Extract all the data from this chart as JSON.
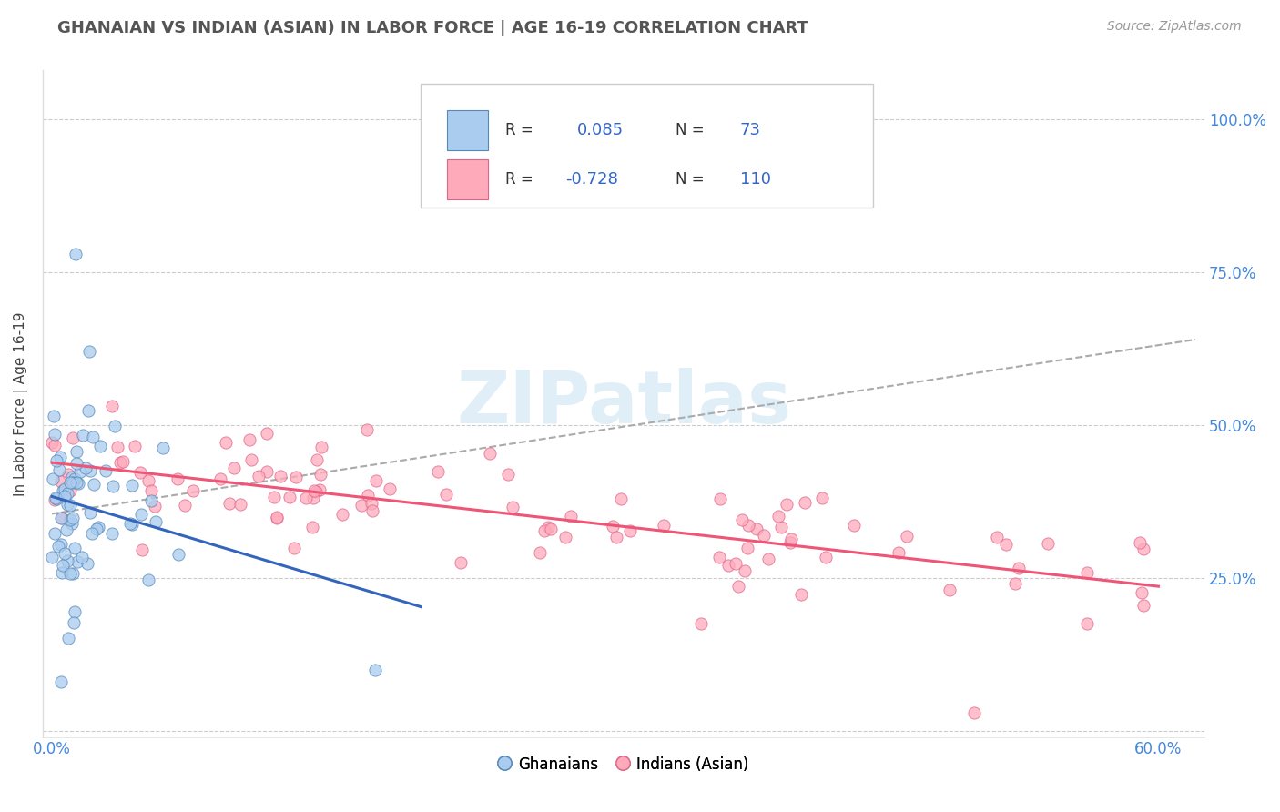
{
  "title": "GHANAIAN VS INDIAN (ASIAN) IN LABOR FORCE | AGE 16-19 CORRELATION CHART",
  "source": "Source: ZipAtlas.com",
  "ylabel": "In Labor Force | Age 16-19",
  "watermark": "ZIPatlas",
  "background_color": "#ffffff",
  "plot_bg_color": "#ffffff",
  "grid_color": "#cccccc",
  "ghanaian_color": "#aaccee",
  "ghanaian_edge_color": "#5588bb",
  "indian_color": "#ffaabb",
  "indian_edge_color": "#dd6688",
  "trend_ghanaian_color": "#3366bb",
  "trend_indian_color": "#ee5577",
  "trend_dashed_color": "#aaaaaa",
  "legend_text_color": "#3366cc",
  "title_color": "#555555",
  "source_color": "#999999",
  "ylabel_color": "#444444",
  "ytick_color": "#4488dd",
  "xtick_color": "#4488dd",
  "ghanaian_R": 0.085,
  "ghanaian_N": 73,
  "indian_R": -0.728,
  "indian_N": 110
}
